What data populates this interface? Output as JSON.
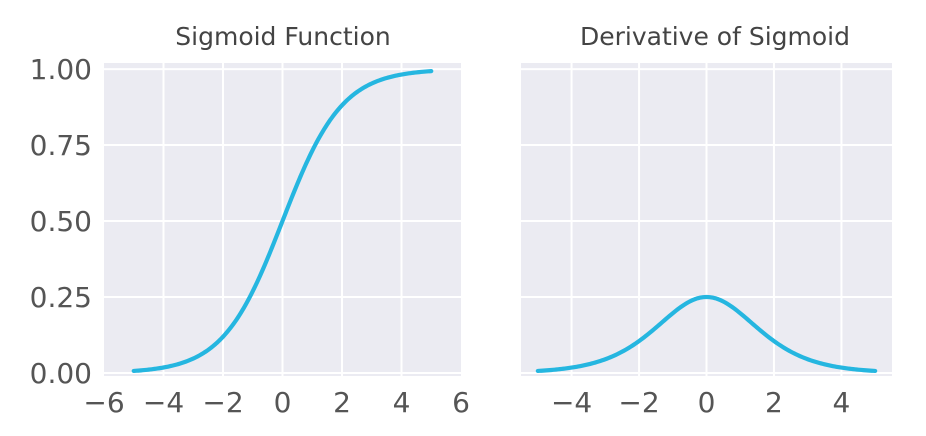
{
  "chart_data": [
    {
      "type": "line",
      "title": "Sigmoid Function",
      "function": "sigmoid",
      "x_range": [
        -5,
        5
      ],
      "xlim": [
        -6,
        6
      ],
      "ylim": [
        -0.01,
        1.02
      ],
      "xticks": [
        -6,
        -4,
        -2,
        0,
        2,
        4,
        6
      ],
      "xtick_labels": [
        "−6",
        "−4",
        "−2",
        "0",
        "2",
        "4",
        "6"
      ],
      "yticks": [
        0,
        0.25,
        0.5,
        0.75,
        1.0
      ],
      "ytick_labels": [
        "0.00",
        "0.25",
        "0.50",
        "0.75",
        "1.00"
      ],
      "x": [
        -5,
        -4,
        -3,
        -2,
        -1,
        0,
        1,
        2,
        3,
        4,
        5
      ],
      "y": [
        0.0067,
        0.018,
        0.0474,
        0.1192,
        0.2689,
        0.5,
        0.7311,
        0.8808,
        0.9526,
        0.982,
        0.9933
      ],
      "grid": true,
      "xlabel": "",
      "ylabel": ""
    },
    {
      "type": "line",
      "title": "Derivative of Sigmoid",
      "function": "sigmoid_derivative",
      "x_range": [
        -5,
        5
      ],
      "xlim": [
        -5.5,
        5.5
      ],
      "ylim": [
        -0.01,
        1.02
      ],
      "xticks": [
        -4,
        -2,
        0,
        2,
        4
      ],
      "xtick_labels": [
        "−4",
        "−2",
        "0",
        "2",
        "4"
      ],
      "yticks": [
        0,
        0.25,
        0.5,
        0.75,
        1.0
      ],
      "ytick_labels": [],
      "x": [
        -5,
        -4,
        -3,
        -2,
        -1,
        0,
        1,
        2,
        3,
        4,
        5
      ],
      "y": [
        0.0066,
        0.0177,
        0.0452,
        0.105,
        0.1966,
        0.25,
        0.1966,
        0.105,
        0.0452,
        0.0177,
        0.0066
      ],
      "grid": true,
      "xlabel": "",
      "ylabel": ""
    }
  ],
  "colors": {
    "line": "#25b6e0",
    "panel_bg": "#ebebf2",
    "grid": "#ffffff"
  }
}
